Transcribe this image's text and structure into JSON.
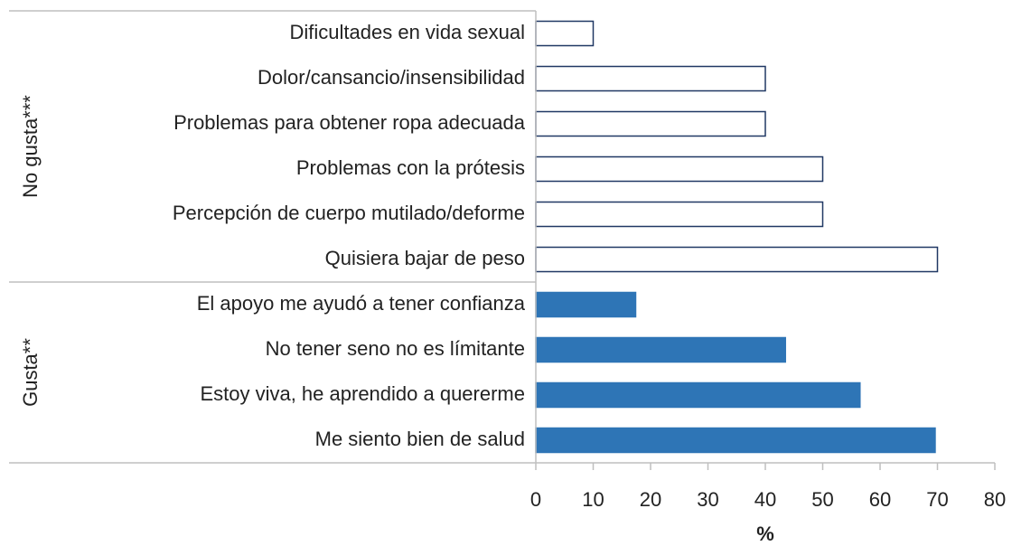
{
  "chart_data": {
    "type": "bar",
    "orientation": "horizontal",
    "xlabel": "%",
    "xlim": [
      0,
      80
    ],
    "xticks": [
      0,
      10,
      20,
      30,
      40,
      50,
      60,
      70,
      80
    ],
    "groups": [
      {
        "name": "No gusta***",
        "fill": "#ffffff",
        "stroke": "#203864",
        "categories": [
          "Dificultades en vida sexual",
          "Dolor/cansancio/insensibilidad",
          "Problemas para obtener ropa adecuada",
          "Problemas con la prótesis",
          "Percepción de cuerpo mutilado/deforme",
          "Quisiera bajar de peso"
        ],
        "values": [
          10,
          40,
          40,
          50,
          50,
          70
        ]
      },
      {
        "name": "Gusta**",
        "fill": "#2e75b6",
        "stroke": "#2e75b6",
        "categories": [
          "El apoyo me ayudó a tener confianza",
          "No tener seno no es límitante",
          "Estoy viva, he aprendido a quererme",
          "Me siento bien de salud"
        ],
        "values": [
          17.4,
          43.5,
          56.5,
          69.6
        ]
      }
    ]
  }
}
